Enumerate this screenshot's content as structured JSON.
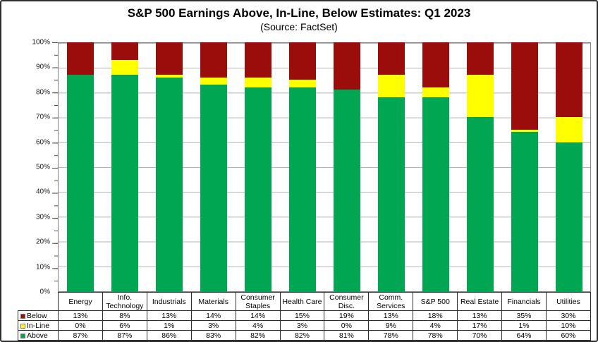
{
  "title": "S&P 500 Earnings Above, In-Line, Below Estimates: Q1 2023",
  "subtitle": "(Source: FactSet)",
  "chart_data": {
    "type": "bar",
    "stacked": true,
    "title": "S&P 500 Earnings Above, In-Line, Below Estimates: Q1 2023",
    "subtitle": "(Source: FactSet)",
    "categories": [
      "Energy",
      "Info. Technology",
      "Industrials",
      "Materials",
      "Consumer Staples",
      "Health Care",
      "Consumer Disc.",
      "Comm. Services",
      "S&P 500",
      "Real Estate",
      "Financials",
      "Utilities"
    ],
    "series": [
      {
        "name": "Above",
        "color": "#00A651",
        "values": [
          87,
          87,
          86,
          83,
          82,
          82,
          81,
          78,
          78,
          70,
          64,
          60
        ]
      },
      {
        "name": "In-Line",
        "color": "#FFFF00",
        "values": [
          0,
          6,
          1,
          3,
          4,
          3,
          0,
          9,
          4,
          17,
          1,
          10
        ]
      },
      {
        "name": "Below",
        "color": "#9B0D0B",
        "values": [
          13,
          8,
          13,
          14,
          14,
          15,
          19,
          13,
          18,
          13,
          35,
          30
        ]
      }
    ],
    "value_suffix": "%",
    "ylim": [
      0,
      100
    ],
    "y_tick_labels": [
      "0%",
      "10%",
      "20%",
      "30%",
      "40%",
      "50%",
      "60%",
      "70%",
      "80%",
      "90%",
      "100%"
    ],
    "grid": "horizontal gridlines every 10%, minor axis ticks every 5%",
    "legend_position": "table rows left of data table",
    "table_row_order": [
      "Below",
      "In-Line",
      "Above"
    ]
  }
}
